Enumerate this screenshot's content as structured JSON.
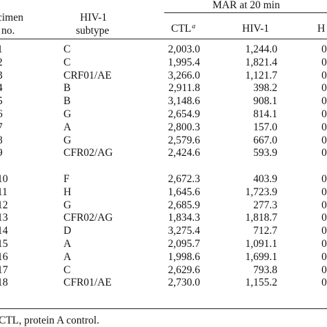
{
  "header": {
    "specimen_line1": "cimen",
    "specimen_line2": "no.",
    "subtype_line1": "HIV-1",
    "subtype_line2": "subtype",
    "mar_group": "MAR at 20 min",
    "col_ctl": "CTL",
    "col_ctl_sup": "a",
    "col_hiv": "HIV-1",
    "col_h": "H"
  },
  "group1": [
    {
      "no": "1",
      "subtype": "C",
      "ctl": "2,003.0",
      "hiv": "1,244.0",
      "h": "0"
    },
    {
      "no": "2",
      "subtype": "C",
      "ctl": "1,995.4",
      "hiv": "1,821.4",
      "h": "0"
    },
    {
      "no": "3",
      "subtype": "CRF01/AE",
      "ctl": "3,266.0",
      "hiv": "1,121.7",
      "h": "0"
    },
    {
      "no": "4",
      "subtype": "B",
      "ctl": "2,911.8",
      "hiv": "398.2",
      "h": "0"
    },
    {
      "no": "5",
      "subtype": "B",
      "ctl": "3,148.6",
      "hiv": "908.1",
      "h": "0"
    },
    {
      "no": "6",
      "subtype": "G",
      "ctl": "2,654.9",
      "hiv": "814.1",
      "h": "0"
    },
    {
      "no": "7",
      "subtype": "A",
      "ctl": "2,800.3",
      "hiv": "157.0",
      "h": "0"
    },
    {
      "no": "8",
      "subtype": "G",
      "ctl": "2,579.6",
      "hiv": "667.0",
      "h": "0"
    },
    {
      "no": "9",
      "subtype": "CFR02/AG",
      "ctl": "2,424.6",
      "hiv": "593.9",
      "h": "0"
    }
  ],
  "group2": [
    {
      "no": "10",
      "subtype": "F",
      "ctl": "2,672.3",
      "hiv": "403.9",
      "h": "0"
    },
    {
      "no": "11",
      "subtype": "H",
      "ctl": "1,645.6",
      "hiv": "1,723.9",
      "h": "0"
    },
    {
      "no": "12",
      "subtype": "G",
      "ctl": "2,685.9",
      "hiv": "277.3",
      "h": "0"
    },
    {
      "no": "13",
      "subtype": "CFR02/AG",
      "ctl": "1,834.3",
      "hiv": "1,818.7",
      "h": "0"
    },
    {
      "no": "14",
      "subtype": "D",
      "ctl": "3,275.4",
      "hiv": "712.7",
      "h": "0"
    },
    {
      "no": "15",
      "subtype": "A",
      "ctl": "2,095.7",
      "hiv": "1,091.1",
      "h": "0"
    },
    {
      "no": "16",
      "subtype": "A",
      "ctl": "1,998.6",
      "hiv": "1,699.1",
      "h": "0"
    },
    {
      "no": "17",
      "subtype": "C",
      "ctl": "2,629.6",
      "hiv": "793.8",
      "h": "0"
    },
    {
      "no": "18",
      "subtype": "CFR01/AE",
      "ctl": "2,730.0",
      "hiv": "1,155.2",
      "h": "0"
    }
  ],
  "footnote": "CTL, protein A control."
}
